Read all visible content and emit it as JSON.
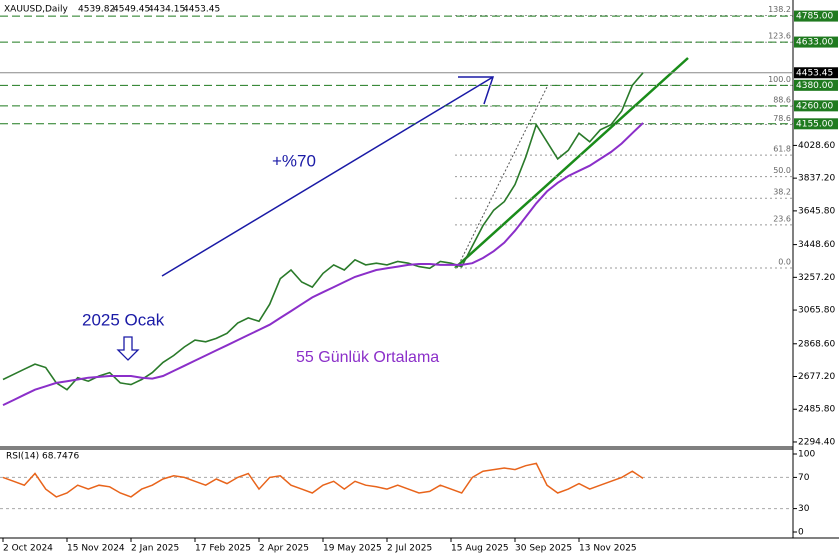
{
  "chart_data": [
    {
      "type": "line",
      "title": "XAUUSD,Daily",
      "ohlc": [
        4539.82,
        4549.45,
        4434.15,
        4453.45
      ],
      "categories": [
        "2 Oct 2024",
        null,
        null,
        null,
        null,
        null,
        "15 Nov 2024",
        null,
        null,
        null,
        null,
        null,
        "2 Jan 2025",
        null,
        null,
        null,
        null,
        null,
        "17 Feb 2025",
        null,
        null,
        null,
        null,
        null,
        "2 Apr 2025",
        null,
        null,
        null,
        null,
        null,
        "19 May 2025",
        null,
        null,
        null,
        null,
        null,
        "2 Jul 2025",
        null,
        null,
        null,
        null,
        null,
        "15 Aug 2025",
        null,
        null,
        null,
        null,
        null,
        "30 Sep 2025",
        null,
        null,
        null,
        null,
        null,
        "13 Nov 2025",
        null,
        null,
        null,
        null,
        null,
        null
      ],
      "series": [
        {
          "name": "XAUUSD",
          "color": "#2a7a2a",
          "values": [
            2660,
            2690,
            2720,
            2750,
            2730,
            2640,
            2600,
            2670,
            2650,
            2680,
            2700,
            2640,
            2630,
            2660,
            2700,
            2760,
            2800,
            2850,
            2890,
            2880,
            2900,
            2930,
            2990,
            3020,
            3000,
            3100,
            3250,
            3300,
            3230,
            3200,
            3280,
            3330,
            3300,
            3360,
            3330,
            3340,
            3330,
            3350,
            3340,
            3320,
            3310,
            3350,
            3340,
            3320,
            3440,
            3560,
            3650,
            3700,
            3800,
            3960,
            4150,
            4050,
            3950,
            4000,
            4100,
            4050,
            4120,
            4150,
            4230,
            4380,
            4453.45
          ]
        },
        {
          "name": "55 Günlük Ortalama",
          "color": "#8b2fc9",
          "values": [
            2510,
            2540,
            2570,
            2600,
            2620,
            2640,
            2650,
            2660,
            2670,
            2675,
            2680,
            2680,
            2680,
            2670,
            2665,
            2680,
            2710,
            2740,
            2770,
            2800,
            2830,
            2860,
            2890,
            2920,
            2950,
            2980,
            3020,
            3060,
            3100,
            3140,
            3170,
            3200,
            3230,
            3260,
            3280,
            3300,
            3310,
            3320,
            3330,
            3335,
            3335,
            3330,
            3330,
            3330,
            3340,
            3370,
            3410,
            3460,
            3530,
            3610,
            3690,
            3760,
            3810,
            3850,
            3880,
            3910,
            3950,
            3990,
            4040,
            4100,
            4160
          ]
        }
      ],
      "ylim": [
        2265,
        4879
      ],
      "yticks": [
        {
          "value": 2294.4,
          "label": "2294.40"
        },
        {
          "value": 2485.8,
          "label": "2485.80"
        },
        {
          "value": 2677.2,
          "label": "2677.20"
        },
        {
          "value": 2868.6,
          "label": "2868.60"
        },
        {
          "value": 3065.8,
          "label": "3065.80"
        },
        {
          "value": 3257.2,
          "label": "3257.20"
        },
        {
          "value": 3448.6,
          "label": "3448.60"
        },
        {
          "value": 3645.8,
          "label": "3645.80"
        },
        {
          "value": 3837.2,
          "label": "3837.20"
        },
        {
          "value": 4028.6,
          "label": "4028.60"
        }
      ],
      "price_levels": [
        {
          "value": 4785,
          "label": "4785.00",
          "color": "#1f7a1f"
        },
        {
          "value": 4633,
          "label": "4633.00",
          "color": "#1f7a1f"
        },
        {
          "value": 4453.45,
          "label": "4453.45",
          "color": "#000000"
        },
        {
          "value": 4380,
          "label": "4380.00",
          "color": "#1f7a1f"
        },
        {
          "value": 4260,
          "label": "4260.00",
          "color": "#1f7a1f"
        },
        {
          "value": 4155,
          "label": "4155.00",
          "color": "#1f7a1f"
        }
      ],
      "fib_levels": [
        {
          "label": "0.0",
          "price": 3312
        },
        {
          "label": "23.6",
          "price": 3564
        },
        {
          "label": "38.2",
          "price": 3720
        },
        {
          "label": "50.0",
          "price": 3846
        },
        {
          "label": "61.8",
          "price": 3972
        },
        {
          "label": "78.6",
          "price": 4151
        },
        {
          "label": "88.6",
          "price": 4258
        },
        {
          "label": "100.0",
          "price": 4380
        },
        {
          "label": "123.6",
          "price": 4632
        },
        {
          "label": "138.2",
          "price": 4788
        }
      ],
      "annotations": [
        {
          "text": "+%70",
          "color": "#1a1aa6"
        },
        {
          "text": "2025 Ocak",
          "color": "#1a1aa6"
        },
        {
          "text": "55 Günlük Ortalama",
          "color": "#8b2fc9"
        }
      ]
    },
    {
      "type": "line",
      "title": "RSI(14)",
      "last_value": 68.7476,
      "series": [
        {
          "name": "RSI(14)",
          "color": "#e8641b",
          "values": [
            70,
            65,
            60,
            75,
            55,
            45,
            50,
            60,
            55,
            60,
            58,
            50,
            45,
            55,
            60,
            68,
            72,
            70,
            65,
            60,
            68,
            62,
            70,
            75,
            55,
            70,
            72,
            60,
            55,
            50,
            60,
            65,
            55,
            65,
            60,
            58,
            55,
            60,
            55,
            50,
            52,
            60,
            55,
            50,
            70,
            78,
            80,
            82,
            80,
            85,
            88,
            60,
            50,
            55,
            62,
            55,
            60,
            65,
            70,
            78,
            68.7476
          ]
        }
      ],
      "ylim": [
        0,
        100
      ],
      "yticks": [
        0,
        30,
        70,
        100
      ]
    }
  ]
}
